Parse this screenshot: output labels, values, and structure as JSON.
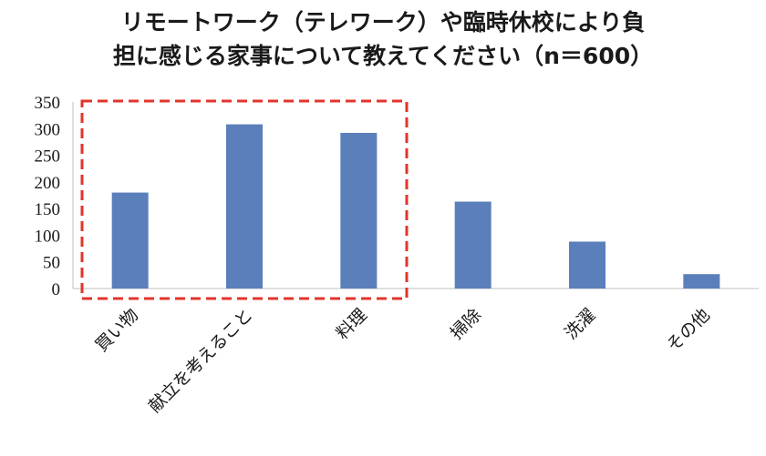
{
  "chart_data": {
    "type": "bar",
    "title_lines": [
      "リモートワーク（テレワーク）や臨時休校により負",
      "担に感じる家事について教えてください（n＝600）"
    ],
    "categories": [
      "買い物",
      "献立を考えること",
      "料理",
      "掃除",
      "洗濯",
      "その他"
    ],
    "values": [
      180,
      308,
      292,
      163,
      88,
      27
    ],
    "ylim": [
      0,
      350
    ],
    "yticks": [
      0,
      50,
      100,
      150,
      200,
      250,
      300,
      350
    ],
    "grid": false,
    "highlighted_categories": [
      "買い物",
      "献立を考えること",
      "料理"
    ],
    "colors": {
      "bar": "#5b7fbb",
      "highlight_box": "#e0352b",
      "axis": "#bfbfbf"
    }
  }
}
